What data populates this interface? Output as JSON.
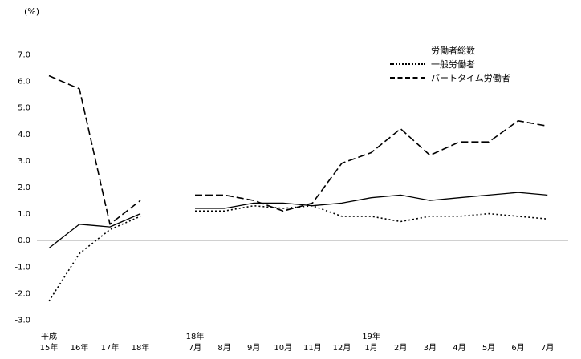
{
  "chart_data": {
    "type": "line",
    "title": "",
    "unit_label": "(%)",
    "xlabel": "",
    "ylabel": "(%)",
    "ylim": [
      -3.0,
      7.0
    ],
    "ytick_step": 1.0,
    "yticks": [
      7.0,
      6.0,
      5.0,
      4.0,
      3.0,
      2.0,
      1.0,
      0.0,
      -1.0,
      -2.0,
      -3.0
    ],
    "grid": false,
    "legend_position": "top-inside",
    "x_yearly": [
      {
        "era": "平成",
        "label": "15年"
      },
      {
        "era": "",
        "label": "16年"
      },
      {
        "era": "",
        "label": "17年"
      },
      {
        "era": "",
        "label": "18年"
      }
    ],
    "x_monthly": [
      {
        "era": "18年",
        "label": "7月"
      },
      {
        "era": "",
        "label": "8月"
      },
      {
        "era": "",
        "label": "9月"
      },
      {
        "era": "",
        "label": "10月"
      },
      {
        "era": "",
        "label": "11月"
      },
      {
        "era": "",
        "label": "12月"
      },
      {
        "era": "19年",
        "label": "1月"
      },
      {
        "era": "",
        "label": "2月"
      },
      {
        "era": "",
        "label": "3月"
      },
      {
        "era": "",
        "label": "4月"
      },
      {
        "era": "",
        "label": "5月"
      },
      {
        "era": "",
        "label": "6月"
      },
      {
        "era": "",
        "label": "7月"
      }
    ],
    "series": [
      {
        "name": "労働者総数",
        "style": "solid",
        "yearly": [
          -0.3,
          0.6,
          0.5,
          1.0
        ],
        "monthly": [
          1.2,
          1.2,
          1.4,
          1.4,
          1.3,
          1.4,
          1.6,
          1.7,
          1.5,
          1.6,
          1.7,
          1.8,
          1.7
        ]
      },
      {
        "name": "一般労働者",
        "style": "dotted",
        "yearly": [
          -2.3,
          -0.5,
          0.4,
          0.9
        ],
        "monthly": [
          1.1,
          1.1,
          1.3,
          1.2,
          1.3,
          0.9,
          0.9,
          0.7,
          0.9,
          0.9,
          1.0,
          0.9,
          0.8
        ]
      },
      {
        "name": "パートタイム労働者",
        "style": "dashed",
        "yearly": [
          6.2,
          5.7,
          0.6,
          1.5
        ],
        "monthly": [
          1.7,
          1.7,
          1.5,
          1.1,
          1.4,
          2.9,
          3.3,
          4.2,
          3.2,
          3.7,
          3.7,
          4.5,
          4.3
        ]
      }
    ]
  }
}
